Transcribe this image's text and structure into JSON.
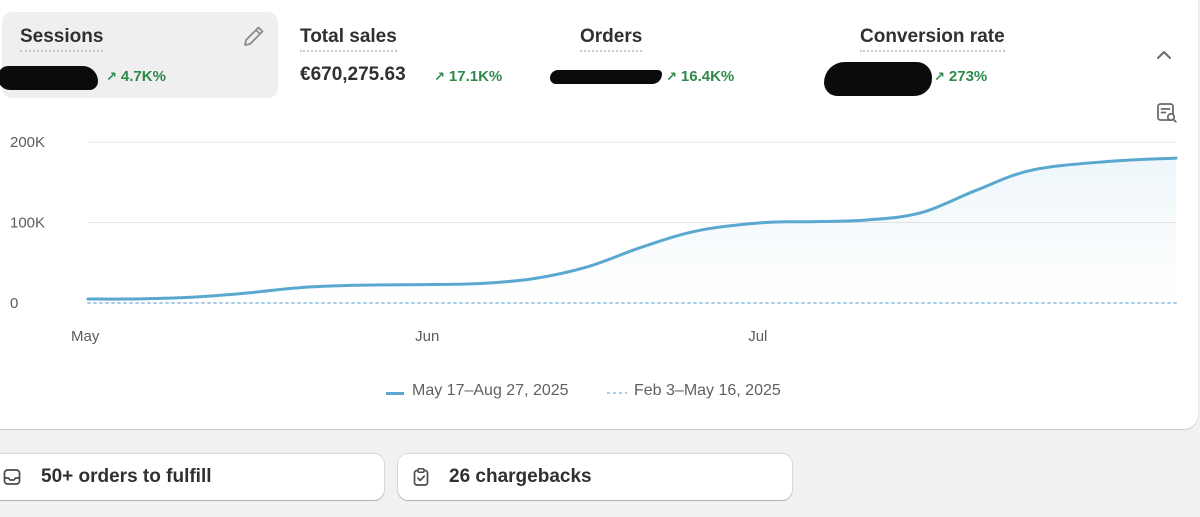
{
  "metrics": [
    {
      "title": "Sessions",
      "value": "",
      "delta": "4.7K%"
    },
    {
      "title": "Total sales",
      "value": "€670,275.63",
      "delta": "17.1K%"
    },
    {
      "title": "Orders",
      "value": "",
      "delta": "16.4K%"
    },
    {
      "title": "Conversion rate",
      "value": "",
      "delta": "273%"
    }
  ],
  "icons": {
    "edit": "pencil-icon",
    "collapse": "chevron-up-icon",
    "chart_options": "chart-search-icon",
    "delta": "arrow-up-right-icon",
    "orders_chip": "inbox-icon",
    "chargebacks_chip": "clipboard-check-icon"
  },
  "colors": {
    "current_series": "#5aa8cf",
    "previous_series": "#a9cde6",
    "delta_positive": "#2e8a4a"
  },
  "chart_data": {
    "type": "line",
    "x_tick_labels": [
      "May",
      "Jun",
      "Jul"
    ],
    "y_tick_labels": [
      "0",
      "100K",
      "200K"
    ],
    "ylim": [
      0,
      200000
    ],
    "grid": true,
    "legend": "bottom-center",
    "series": [
      {
        "name": "May 17–Aug 27, 2025",
        "style": "solid",
        "points": [
          {
            "x": "2025-05-01",
            "y": 5000
          },
          {
            "x": "2025-05-05",
            "y": 5000
          },
          {
            "x": "2025-05-10",
            "y": 7000
          },
          {
            "x": "2025-05-15",
            "y": 12000
          },
          {
            "x": "2025-05-20",
            "y": 19000
          },
          {
            "x": "2025-05-25",
            "y": 22000
          },
          {
            "x": "2025-06-01",
            "y": 23000
          },
          {
            "x": "2025-06-05",
            "y": 24000
          },
          {
            "x": "2025-06-10",
            "y": 30000
          },
          {
            "x": "2025-06-15",
            "y": 45000
          },
          {
            "x": "2025-06-20",
            "y": 70000
          },
          {
            "x": "2025-06-25",
            "y": 90000
          },
          {
            "x": "2025-07-01",
            "y": 100000
          },
          {
            "x": "2025-07-05",
            "y": 101000
          },
          {
            "x": "2025-07-10",
            "y": 103000
          },
          {
            "x": "2025-07-15",
            "y": 112000
          },
          {
            "x": "2025-07-20",
            "y": 140000
          },
          {
            "x": "2025-07-25",
            "y": 165000
          },
          {
            "x": "2025-08-01",
            "y": 176000
          },
          {
            "x": "2025-08-07",
            "y": 180000
          }
        ]
      },
      {
        "name": "Feb 3–May 16, 2025",
        "style": "dotted",
        "points": [
          {
            "x": "2025-05-01",
            "y": 0
          },
          {
            "x": "2025-08-07",
            "y": 0
          }
        ]
      }
    ]
  },
  "tasks": [
    {
      "label": "50+ orders to fulfill"
    },
    {
      "label": "26 chargebacks"
    }
  ]
}
